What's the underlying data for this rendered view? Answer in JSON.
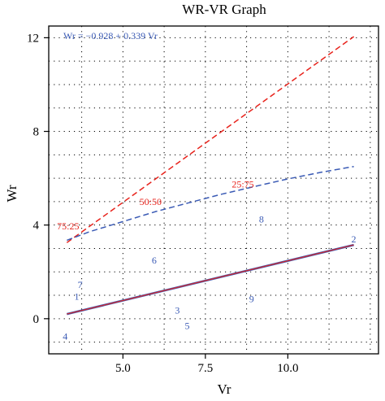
{
  "chart_data": {
    "type": "scatter",
    "title": "WR-VR Graph",
    "xlabel": "Vr",
    "ylabel": "Wr",
    "xlim": [
      2.75,
      12.75
    ],
    "ylim": [
      -1.5,
      12.5
    ],
    "xticks": [
      5.0,
      7.5,
      10.0
    ],
    "xtick_labels": [
      "5.0",
      "7.5",
      "10.0"
    ],
    "yticks": [
      0,
      4,
      8,
      12
    ],
    "ytick_labels": [
      "0",
      "4",
      "8",
      "12"
    ],
    "xgrid": [
      3.75,
      5.0,
      6.25,
      7.5,
      8.75,
      10.0,
      11.25,
      12.5
    ],
    "ygrid": [
      -1,
      0,
      1,
      2,
      3,
      4,
      5,
      6,
      7,
      8,
      9,
      10,
      11,
      12
    ],
    "grid": true,
    "equation": "Wr = −0.928 + 0.339 Vr",
    "points": [
      {
        "label": "1",
        "x": 3.6,
        "y": 0.95
      },
      {
        "label": "2",
        "x": 12.0,
        "y": 3.4
      },
      {
        "label": "3",
        "x": 6.65,
        "y": 0.35
      },
      {
        "label": "4",
        "x": 3.25,
        "y": -0.75
      },
      {
        "label": "5",
        "x": 6.95,
        "y": -0.3
      },
      {
        "label": "6",
        "x": 5.95,
        "y": 2.5
      },
      {
        "label": "7",
        "x": 3.7,
        "y": 1.45
      },
      {
        "label": "8",
        "x": 9.2,
        "y": 4.25
      },
      {
        "label": "9",
        "x": 8.9,
        "y": 0.85
      }
    ],
    "regression_line": {
      "x": [
        3.3,
        12.0
      ],
      "y": [
        0.2,
        3.15
      ],
      "color": "#d62728"
    },
    "limiting_parabola": {
      "x": [
        3.3,
        4.0,
        5.0,
        6.0,
        7.0,
        8.0,
        9.0,
        10.0,
        11.0,
        12.0
      ],
      "y": [
        3.35,
        3.72,
        4.15,
        4.58,
        4.95,
        5.32,
        5.65,
        5.97,
        6.25,
        6.5
      ],
      "color": "#3b5bb5"
    },
    "upper_line": {
      "x": [
        3.3,
        12.0
      ],
      "y": [
        3.25,
        12.05
      ],
      "color": "#e8231c"
    },
    "ratio_labels": [
      {
        "text": "75:25",
        "x": 3.0,
        "y": 3.95
      },
      {
        "text": "50:50",
        "x": 5.5,
        "y": 5.0
      },
      {
        "text": "25:75",
        "x": 8.3,
        "y": 5.75
      }
    ],
    "colors": {
      "points": "#3b5bb5",
      "ratio_labels": "#e8231c",
      "equation": "#3b5bb5",
      "axes": "#000000",
      "grid": "#000000"
    }
  }
}
